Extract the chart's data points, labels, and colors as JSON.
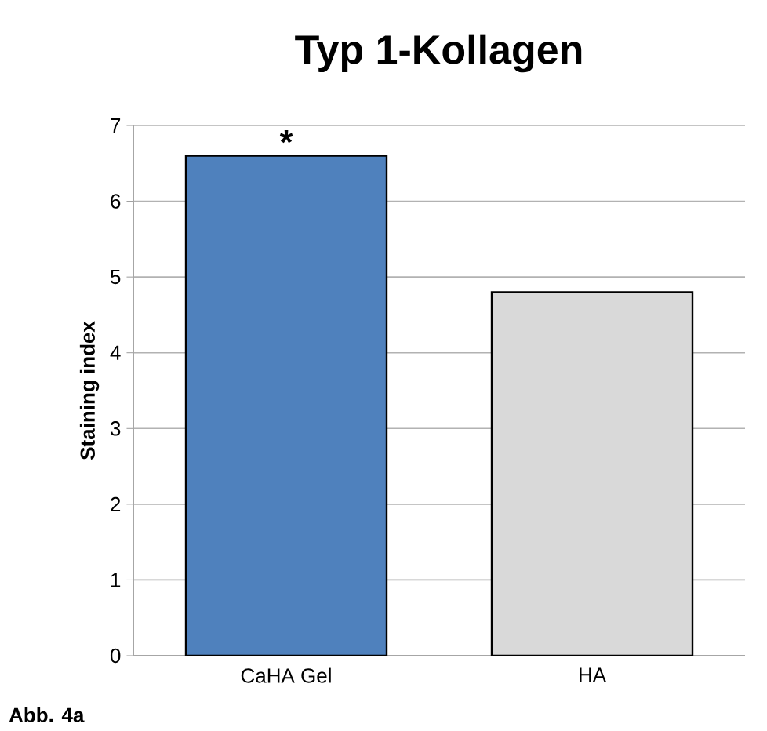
{
  "chart_data": {
    "type": "bar",
    "title": "Typ 1-Kollagen",
    "ylabel": "Staining index",
    "categories": [
      "CaHA Gel",
      "HA"
    ],
    "values": [
      6.6,
      4.8
    ],
    "colors": [
      "#4f81bd",
      "#d9d9d9"
    ],
    "ylim": [
      0,
      7
    ],
    "yticks": [
      0,
      1,
      2,
      3,
      4,
      5,
      6,
      7
    ],
    "grid": "y",
    "annotations": [
      {
        "text": "*",
        "x": "CaHA Gel",
        "y": 6.6
      },
      "Abb. 4a"
    ]
  }
}
